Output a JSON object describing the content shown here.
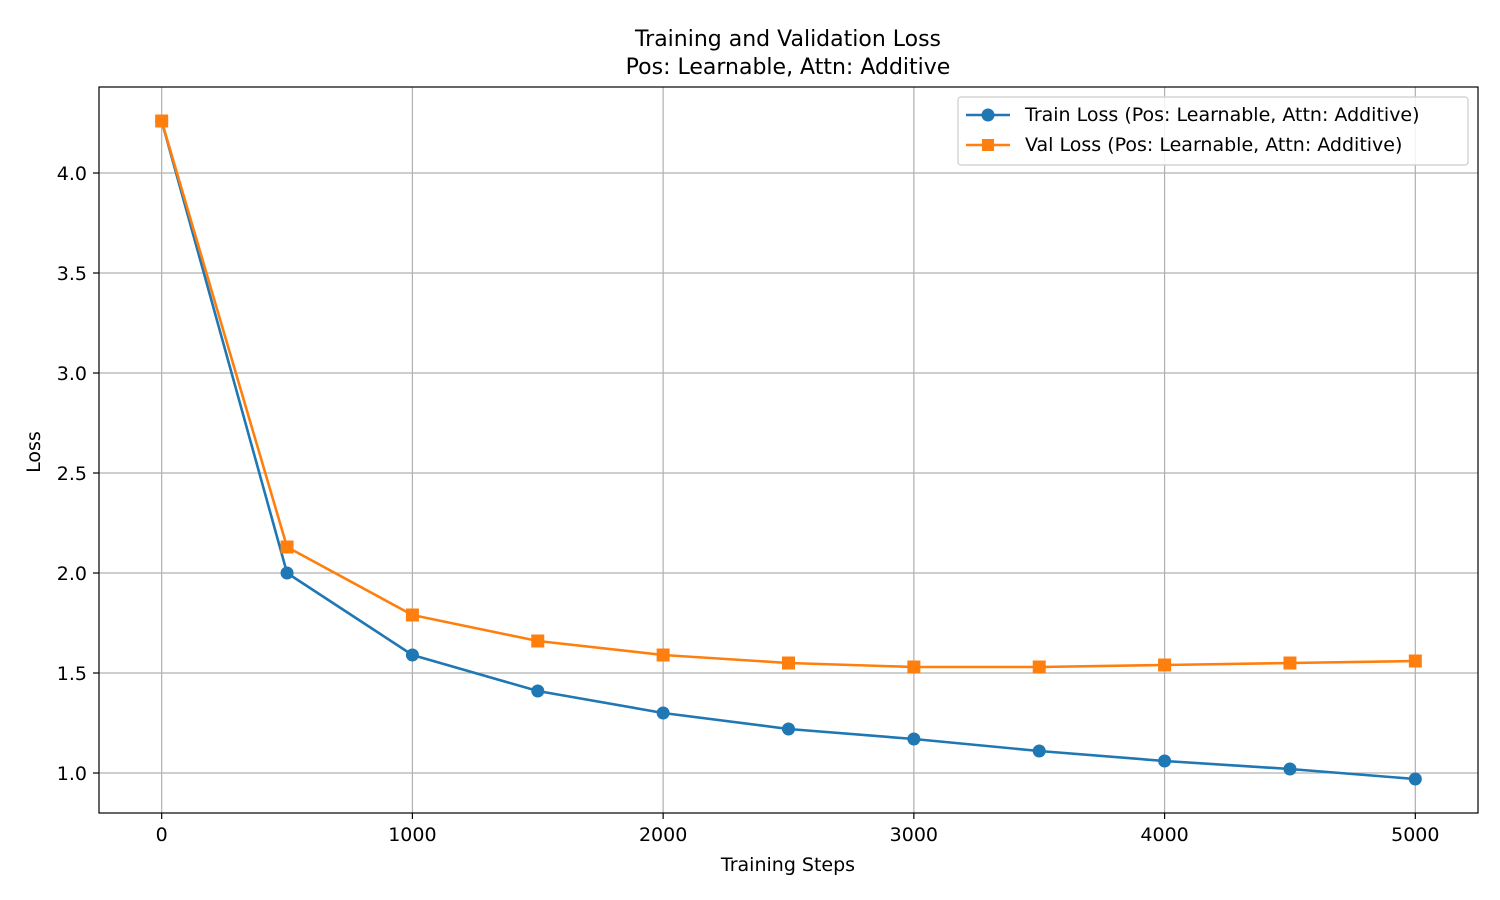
{
  "chart_data": {
    "type": "line",
    "title": "Training and Validation Loss",
    "subtitle": "Pos: Learnable, Attn: Additive",
    "xlabel": "Training Steps",
    "ylabel": "Loss",
    "xlim": [
      -250,
      5250
    ],
    "ylim": [
      0.8,
      4.43
    ],
    "xticks": [
      0,
      1000,
      2000,
      3000,
      4000,
      5000
    ],
    "yticks": [
      1.0,
      1.5,
      2.0,
      2.5,
      3.0,
      3.5,
      4.0
    ],
    "xtick_labels": [
      "0",
      "1000",
      "2000",
      "3000",
      "4000",
      "5000"
    ],
    "ytick_labels": [
      "1.0",
      "1.5",
      "2.0",
      "2.5",
      "3.0",
      "3.5",
      "4.0"
    ],
    "grid": true,
    "legend_position": "top-right",
    "x": [
      0,
      500,
      1000,
      1500,
      2000,
      2500,
      3000,
      3500,
      4000,
      4500,
      5000
    ],
    "series": [
      {
        "name": "Train Loss (Pos: Learnable, Attn: Additive)",
        "color": "#1f77b4",
        "marker": "circle",
        "values": [
          4.26,
          2.0,
          1.59,
          1.41,
          1.3,
          1.22,
          1.17,
          1.11,
          1.06,
          1.02,
          0.97
        ]
      },
      {
        "name": "Val Loss (Pos: Learnable, Attn: Additive)",
        "color": "#ff7f0e",
        "marker": "square",
        "values": [
          4.26,
          2.13,
          1.79,
          1.66,
          1.59,
          1.55,
          1.53,
          1.53,
          1.54,
          1.55,
          1.56
        ]
      }
    ]
  }
}
